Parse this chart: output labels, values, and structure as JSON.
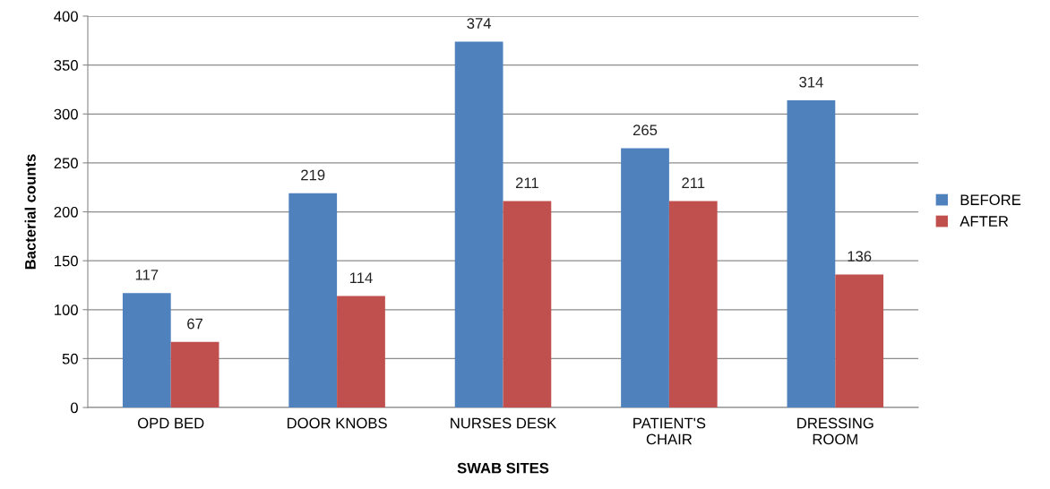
{
  "chart_data": {
    "type": "bar",
    "xlabel": "SWAB SITES",
    "ylabel": "Bacterial counts",
    "categories": [
      "OPD BED",
      "DOOR KNOBS",
      "NURSES DESK",
      "PATIENT'S\nCHAIR",
      "DRESSING\nROOM"
    ],
    "series": [
      {
        "name": "BEFORE",
        "color": "#4f81bd",
        "values": [
          117,
          219,
          374,
          265,
          314
        ]
      },
      {
        "name": "AFTER",
        "color": "#c0504d",
        "values": [
          67,
          114,
          211,
          211,
          136
        ]
      }
    ],
    "ylim": [
      0,
      400
    ],
    "yticks": [
      0,
      50,
      100,
      150,
      200,
      250,
      300,
      350,
      400
    ],
    "grid": "y",
    "legend": "right",
    "data_labels": true
  }
}
